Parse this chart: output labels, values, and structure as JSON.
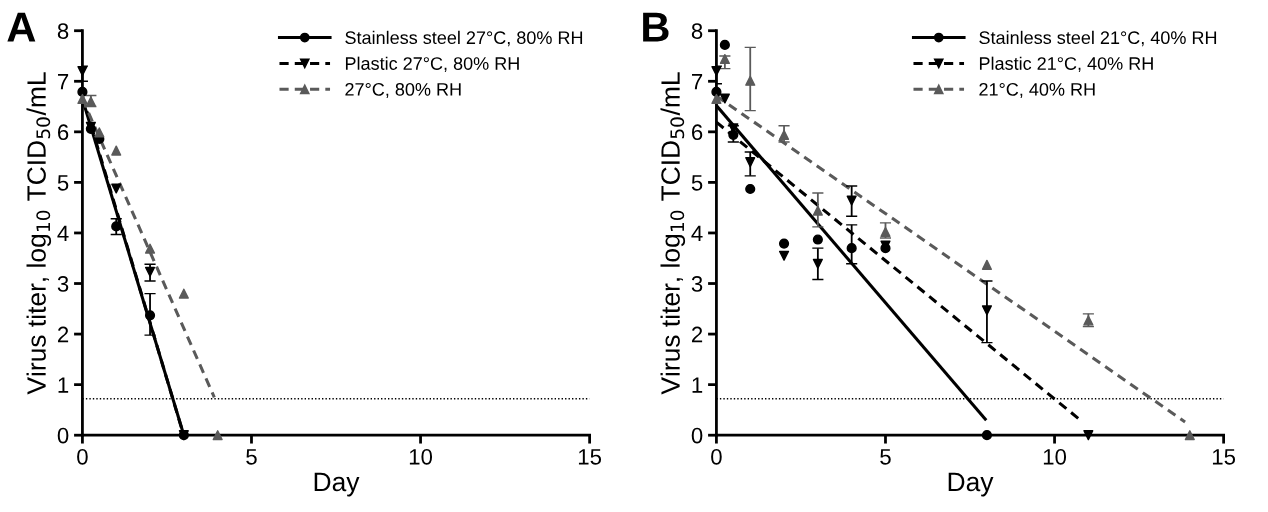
{
  "chart_data": [
    {
      "type": "scatter",
      "title": "A",
      "xlabel": "Day",
      "ylabel": "Virus titer, log$_{10}$ TCID$_{50}$/mL",
      "xlim": [
        0,
        15
      ],
      "xticks": [
        0,
        5,
        10,
        15
      ],
      "ylim": [
        0,
        8
      ],
      "yticks": [
        0,
        1,
        2,
        3,
        4,
        5,
        6,
        7,
        8
      ],
      "grid": false,
      "legend": "top right",
      "ref_lines": [
        {
          "axis": "y",
          "value": 0.72,
          "color": "#000000",
          "line_style": "dotted"
        }
      ],
      "series": [
        {
          "name": "Stainless steel 27°C, 80% RH",
          "marker": "circle",
          "line_style": "solid",
          "color": "#000000",
          "x": [
            0,
            0.25,
            0.5,
            1,
            2,
            3
          ],
          "values": [
            6.79,
            6.06,
            5.86,
            4.13,
            2.37,
            0
          ],
          "errors": [
            null,
            null,
            null,
            [
              3.97,
              4.28
            ],
            [
              1.98,
              2.8
            ],
            null
          ]
        },
        {
          "name": "Plastic 27°C, 80% RH",
          "marker": "triangle_down",
          "line_style": "dashed",
          "color": "#000000",
          "x": [
            0,
            0.25,
            0.5,
            1,
            2,
            3
          ],
          "values": [
            7.2,
            6.1,
            null,
            4.88,
            3.23,
            0
          ],
          "errors": [
            [
              7.0,
              7.3
            ],
            null,
            null,
            null,
            [
              3.05,
              3.38
            ],
            null
          ]
        },
        {
          "name": "27°C, 80% RH",
          "marker": "triangle",
          "line_style": "dashed",
          "color": "#5a5a5a",
          "x": [
            0,
            0.25,
            0.5,
            1,
            2,
            3,
            4
          ],
          "values": [
            6.65,
            6.6,
            5.99,
            5.63,
            3.69,
            2.8,
            0
          ],
          "errors": [
            null,
            [
              6.5,
              6.72
            ],
            null,
            null,
            null,
            null,
            null
          ]
        },
        {
          "type": "line",
          "line_style": "solid",
          "color": "#000000",
          "x": [
            0,
            3
          ],
          "values": [
            6.65,
            0
          ]
        },
        {
          "type": "line",
          "line_style": "dashed",
          "color": "#000000",
          "x": [
            0,
            2.95
          ],
          "values": [
            6.7,
            0.1
          ]
        },
        {
          "type": "line",
          "line_style": "dashed",
          "color": "#5a5a5a",
          "x": [
            0,
            3.9
          ],
          "values": [
            6.65,
            0.75
          ]
        }
      ]
    },
    {
      "type": "scatter",
      "title": "B",
      "xlabel": "Day",
      "ylabel": "Virus titer, log$_{10}$ TCID$_{50}$/mL",
      "xlim": [
        0,
        15
      ],
      "xticks": [
        0,
        5,
        10,
        15
      ],
      "ylim": [
        0,
        8
      ],
      "yticks": [
        0,
        1,
        2,
        3,
        4,
        5,
        6,
        7,
        8
      ],
      "grid": false,
      "legend": "top right",
      "ref_lines": [
        {
          "axis": "y",
          "value": 0.72,
          "color": "#000000",
          "line_style": "dotted"
        }
      ],
      "series": [
        {
          "name": "Stainless steel 21°C, 40% RH",
          "marker": "circle",
          "line_style": "solid",
          "color": "#000000",
          "x": [
            0,
            0.25,
            0.5,
            1,
            2,
            3,
            4,
            5,
            8
          ],
          "values": [
            6.79,
            7.72,
            5.94,
            4.87,
            3.79,
            3.87,
            3.7,
            3.7,
            0
          ],
          "errors": [
            null,
            null,
            [
              5.8,
              6.12
            ],
            null,
            null,
            null,
            [
              3.39,
              4.16
            ],
            null,
            null
          ]
        },
        {
          "name": "Plastic 21°C, 40% RH",
          "marker": "triangle_down",
          "line_style": "dashed",
          "color": "#000000",
          "x": [
            0,
            0.25,
            0.5,
            1,
            2,
            3,
            4,
            5,
            8,
            11
          ],
          "values": [
            7.2,
            6.66,
            6.07,
            5.4,
            3.55,
            3.39,
            4.64,
            3.75,
            2.47,
            0
          ],
          "errors": [
            [
              6.95,
              7.3
            ],
            null,
            null,
            [
              5.13,
              5.6
            ],
            null,
            [
              3.08,
              3.7
            ],
            [
              4.33,
              4.93
            ],
            null,
            [
              1.83,
              3.05
            ],
            null
          ]
        },
        {
          "name": "21°C, 40% RH",
          "marker": "triangle",
          "line_style": "dashed",
          "color": "#5a5a5a",
          "x": [
            0,
            0.25,
            1,
            2,
            3,
            5,
            8,
            11,
            14
          ],
          "values": [
            6.65,
            7.44,
            7.01,
            5.94,
            4.44,
            4.02,
            3.37,
            2.27,
            0
          ],
          "errors": [
            null,
            [
              7.25,
              7.5
            ],
            [
              6.42,
              7.67
            ],
            [
              5.8,
              6.12
            ],
            [
              4.12,
              4.79
            ],
            [
              3.9,
              4.2
            ],
            null,
            [
              2.15,
              2.4
            ],
            null
          ]
        },
        {
          "type": "line",
          "line_style": "solid",
          "color": "#000000",
          "x": [
            0,
            7.95
          ],
          "values": [
            6.52,
            0.32
          ]
        },
        {
          "type": "line",
          "line_style": "dashed",
          "color": "#000000",
          "x": [
            0,
            10.76
          ],
          "values": [
            6.19,
            0.3
          ]
        },
        {
          "type": "line",
          "line_style": "dashed",
          "color": "#5a5a5a",
          "x": [
            0,
            13.86
          ],
          "values": [
            6.71,
            0.26
          ]
        }
      ]
    }
  ]
}
